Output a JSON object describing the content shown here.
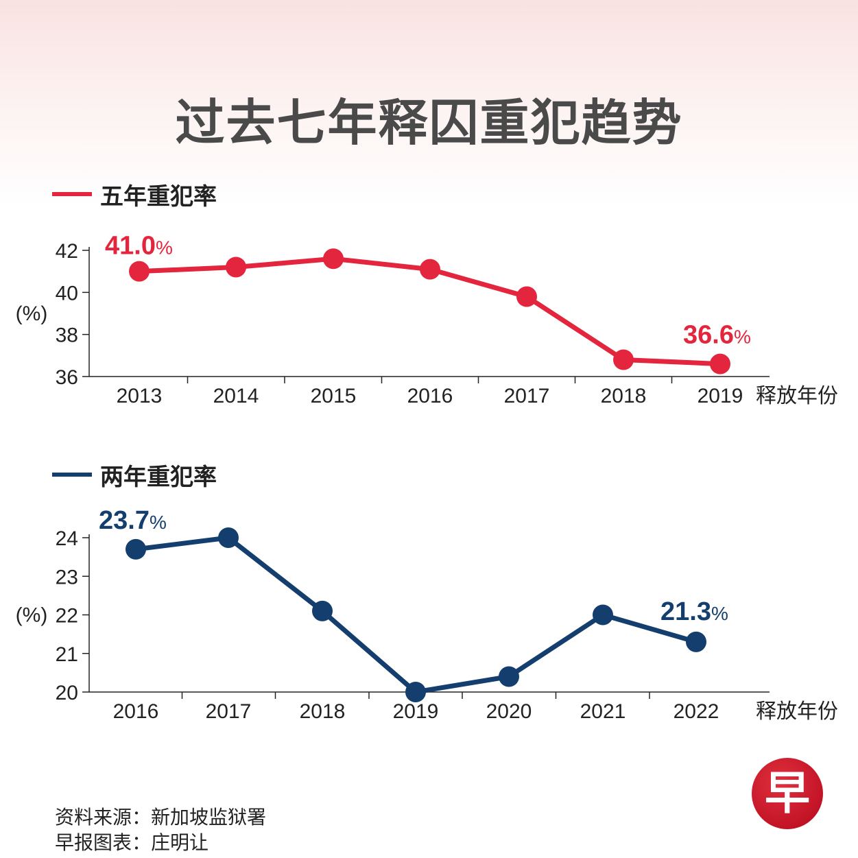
{
  "title": "过去七年释囚重犯趋势",
  "colors": {
    "five_year": "#e3263e",
    "two_year": "#133e6e",
    "axis": "#222222",
    "title": "#4a4a4a"
  },
  "source": {
    "data_source": "资料来源：新加坡监狱署",
    "graphic_by": "早报图表：庄明让"
  },
  "logo_text": "早",
  "chart_data": [
    {
      "type": "line",
      "title": "五年重犯率",
      "xlabel": "释放年份",
      "ylabel": "(%)",
      "categories": [
        "2013",
        "2014",
        "2015",
        "2016",
        "2017",
        "2018",
        "2019"
      ],
      "values": [
        41.0,
        41.2,
        41.6,
        41.1,
        39.8,
        36.8,
        36.6
      ],
      "ylim": [
        36,
        42
      ],
      "yticks": [
        36,
        38,
        40,
        42
      ],
      "ytick_labels": [
        "36",
        "38",
        "40",
        "42"
      ],
      "annotations": [
        {
          "index": 0,
          "value": "41.0",
          "unit": "%"
        },
        {
          "index": 6,
          "value": "36.6",
          "unit": "%"
        }
      ],
      "color": "#e3263e"
    },
    {
      "type": "line",
      "title": "两年重犯率",
      "xlabel": "释放年份",
      "ylabel": "(%)",
      "categories": [
        "2016",
        "2017",
        "2018",
        "2019",
        "2020",
        "2021",
        "2022"
      ],
      "values": [
        23.7,
        24.0,
        22.1,
        20.0,
        20.4,
        22.0,
        21.3
      ],
      "ylim": [
        20,
        24
      ],
      "yticks": [
        20,
        21,
        22,
        23,
        24
      ],
      "ytick_labels": [
        "20",
        "21",
        "22",
        "23",
        "24"
      ],
      "annotations": [
        {
          "index": 0,
          "value": "23.7",
          "unit": "%"
        },
        {
          "index": 6,
          "value": "21.3",
          "unit": "%"
        }
      ],
      "color": "#133e6e"
    }
  ]
}
